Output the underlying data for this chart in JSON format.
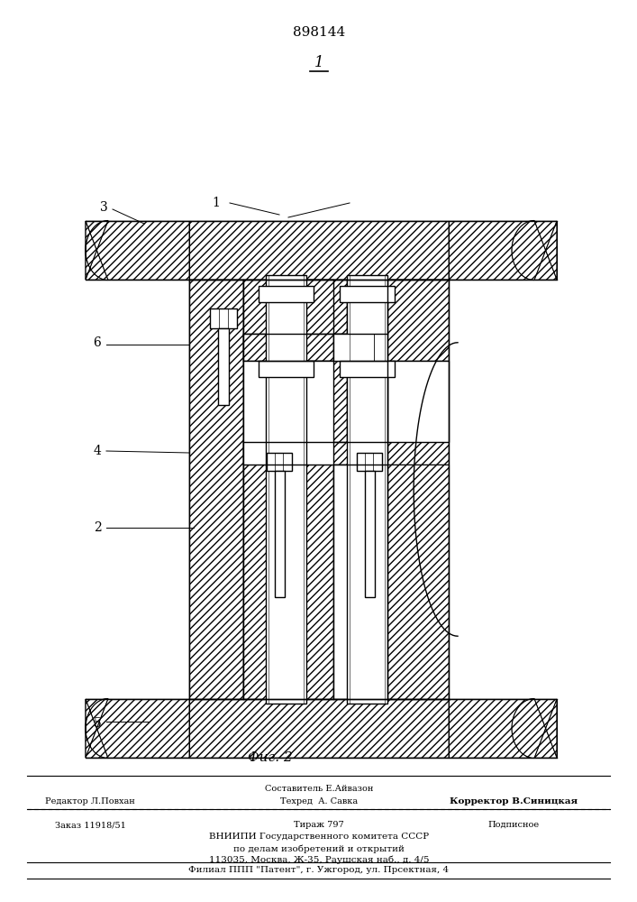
{
  "patent_number": "898144",
  "fig_label": "1",
  "fig_caption": "Фиг. 2",
  "bottom_text_line1": "Составитель Е.Айвазон",
  "bottom_text_editor": "Редактор Л.Повхан",
  "bottom_text_tech": "Техред  А. Савка",
  "bottom_text_corrector": "Корректор В.Синицкая",
  "bottom_text_order": "Заказ 11918/51",
  "bottom_text_tirazh": "Тираж 797",
  "bottom_text_podpisnoe": "Подписное",
  "bottom_text_vniipи": "ВНИИПИ Государственного комитета СССР",
  "bottom_text_po_delam": "по делам изобретений и открытий",
  "bottom_text_address": "113035, Москва, Ж-35, Раушская наб., д. 4/5",
  "bottom_text_filial": "Филиал ППП \"Патент\", г. Ужгород, ул. Прсектная, 4",
  "bg_color": "#ffffff",
  "line_color": "#000000"
}
